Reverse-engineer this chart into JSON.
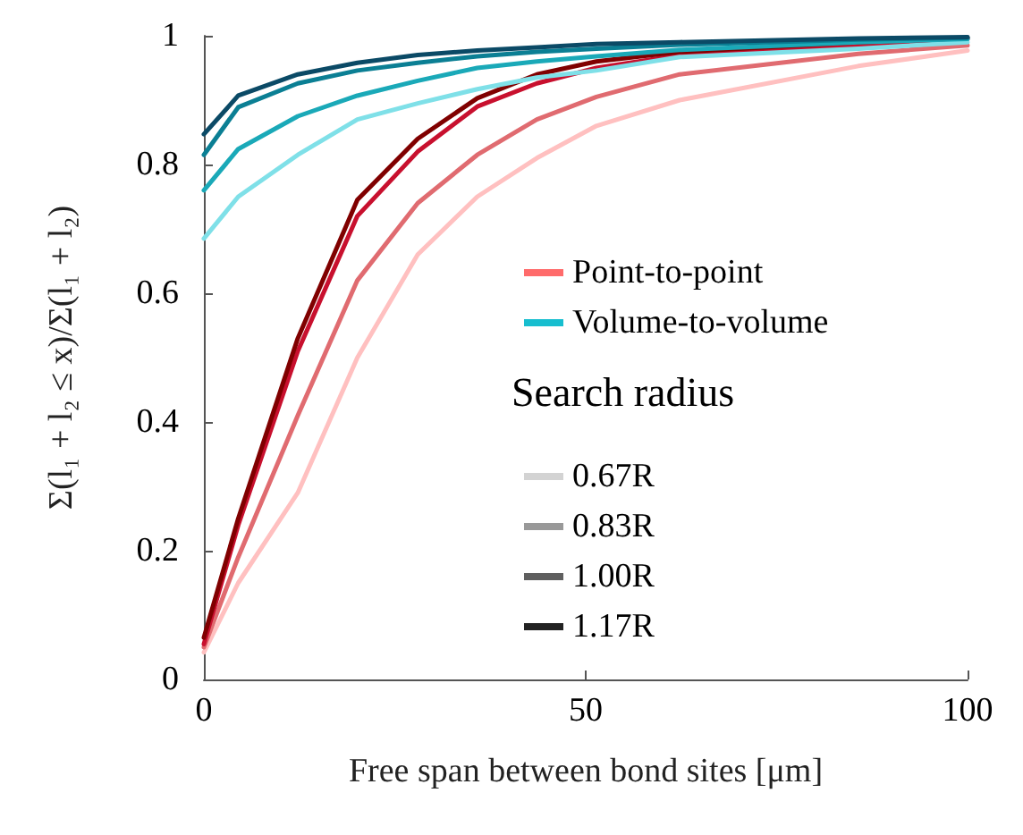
{
  "chart_data": {
    "type": "line",
    "xlabel": "Free span between bond sites [μm]",
    "ylabel": "Σ(l₁ + l₂ ≤ x)/Σ(l₁ + l₂)",
    "legend_title": "Search radius",
    "legend": "right",
    "grid": false,
    "x": [
      0,
      4.5,
      12.3,
      20.1,
      28,
      35.8,
      43.6,
      51.4,
      62.3,
      85.7,
      100
    ],
    "xlim": [
      0,
      100
    ],
    "xticks": [
      0,
      50,
      100
    ],
    "ylim": [
      0,
      1
    ],
    "yticks": [
      0,
      0.2,
      0.4,
      0.6,
      0.8,
      1
    ],
    "series": [
      {
        "color": "#ffc0c0",
        "values": [
          0.042,
          0.15,
          0.29,
          0.5,
          0.66,
          0.75,
          0.81,
          0.86,
          0.9,
          0.953,
          0.977
        ]
      },
      {
        "color": "#e06b70",
        "values": [
          0.05,
          0.19,
          0.41,
          0.62,
          0.74,
          0.815,
          0.87,
          0.905,
          0.94,
          0.972,
          0.985
        ]
      },
      {
        "color": "#c8102e",
        "values": [
          0.055,
          0.24,
          0.51,
          0.72,
          0.82,
          0.89,
          0.926,
          0.95,
          0.97,
          0.985,
          0.995
        ]
      },
      {
        "color": "#800000",
        "values": [
          0.065,
          0.25,
          0.53,
          0.745,
          0.84,
          0.903,
          0.94,
          0.96,
          0.975,
          0.99,
          0.997
        ]
      },
      {
        "color": "#7fe0e8",
        "values": [
          0.685,
          0.75,
          0.815,
          0.87,
          0.895,
          0.917,
          0.935,
          0.946,
          0.967,
          0.98,
          0.99
        ]
      },
      {
        "color": "#1aa9b8",
        "values": [
          0.76,
          0.824,
          0.875,
          0.907,
          0.93,
          0.95,
          0.96,
          0.968,
          0.978,
          0.99,
          0.995
        ]
      },
      {
        "color": "#0b7f94",
        "values": [
          0.815,
          0.889,
          0.926,
          0.946,
          0.958,
          0.968,
          0.975,
          0.98,
          0.986,
          0.994,
          0.997
        ]
      },
      {
        "color": "#0b4a66",
        "values": [
          0.847,
          0.907,
          0.94,
          0.958,
          0.97,
          0.977,
          0.982,
          0.987,
          0.99,
          0.996,
          0.998
        ]
      },
      {
        "name": "Point-to-point",
        "color": "#ff6b6b",
        "values": [
          null,
          null,
          null,
          null,
          null,
          null,
          null,
          null,
          null,
          null,
          null
        ]
      },
      {
        "name": "Volume-to-volume",
        "color": "#17becf",
        "values": [
          null,
          null,
          null,
          null,
          null,
          null,
          null,
          null,
          null,
          null,
          null
        ]
      },
      {
        "name": "0.67R",
        "color": "#d3d3d3",
        "values": [
          null,
          null,
          null,
          null,
          null,
          null,
          null,
          null,
          null,
          null,
          null
        ]
      },
      {
        "name": "0.83R",
        "color": "#999999",
        "values": [
          null,
          null,
          null,
          null,
          null,
          null,
          null,
          null,
          null,
          null,
          null
        ]
      },
      {
        "name": "1.00R",
        "color": "#5f5f5f",
        "values": [
          null,
          null,
          null,
          null,
          null,
          null,
          null,
          null,
          null,
          null,
          null
        ]
      },
      {
        "name": "1.17R",
        "color": "#222222",
        "values": [
          null,
          null,
          null,
          null,
          null,
          null,
          null,
          null,
          null,
          null,
          null
        ]
      }
    ]
  }
}
